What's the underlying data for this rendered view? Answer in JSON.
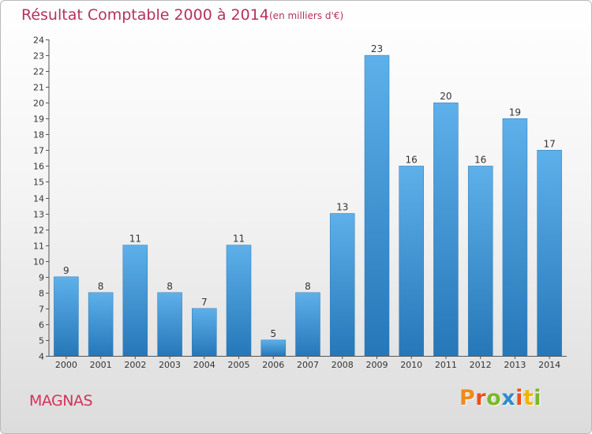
{
  "chart_data": {
    "type": "bar",
    "title": "Résultat Comptable 2000 à 2014",
    "subtitle": "(en milliers d'€)",
    "categories": [
      "2000",
      "2001",
      "2002",
      "2003",
      "2004",
      "2005",
      "2006",
      "2007",
      "2008",
      "2009",
      "2010",
      "2011",
      "2012",
      "2013",
      "2014"
    ],
    "values": [
      9,
      8,
      11,
      8,
      7,
      11,
      5,
      8,
      13,
      23,
      16,
      20,
      16,
      19,
      17
    ],
    "ylim": [
      4,
      24
    ],
    "yticks": [
      4,
      5,
      6,
      7,
      8,
      9,
      10,
      11,
      12,
      13,
      14,
      15,
      16,
      17,
      18,
      19,
      20,
      21,
      22,
      23,
      24
    ],
    "xlabel": "",
    "ylabel": "",
    "grid": false,
    "bar_color": "#3a8fd4"
  },
  "footer": {
    "commune": "MAGNAS",
    "brand_letters": [
      "P",
      "r",
      "o",
      "x",
      "i",
      "t",
      "i"
    ],
    "brand_colors": [
      "#f08a1c",
      "#e8511e",
      "#7ab829",
      "#2c8bd1",
      "#e8511e",
      "#f0b400",
      "#7ab829"
    ]
  },
  "colors": {
    "title": "#b5325a",
    "commune": "#d4325a"
  }
}
